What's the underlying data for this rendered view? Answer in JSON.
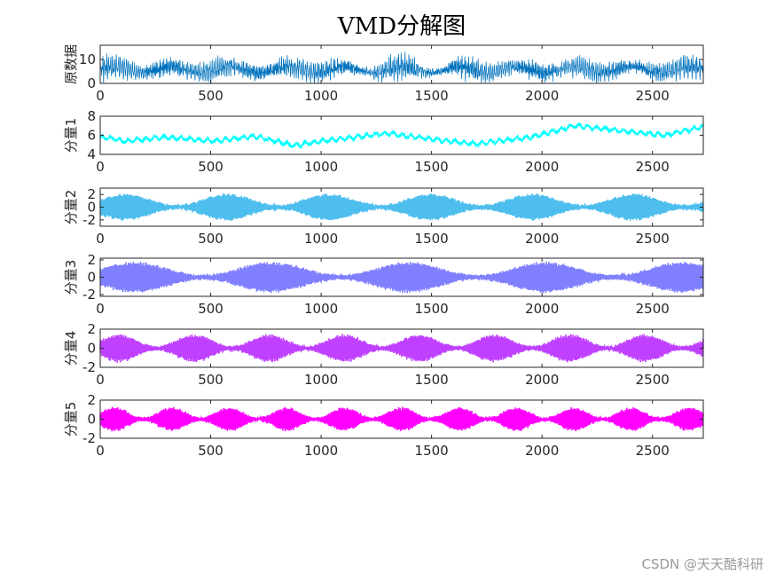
{
  "chart_data": {
    "type": "line",
    "title": "VMD分解图",
    "x_range": [
      0,
      2730
    ],
    "x_ticks": [
      0,
      500,
      1000,
      1500,
      2000,
      2500
    ],
    "panels": [
      {
        "name": "原数据",
        "ylabel": "原数据",
        "ylim": [
          0,
          16
        ],
        "y_ticks": [
          0,
          10
        ],
        "color": "#0072BD",
        "stroke": 0.7,
        "signal": {
          "base": 5.8,
          "components": [
            {
              "amp": 1.3,
              "period": 260,
              "phase": 0.0
            },
            {
              "amp": 3.0,
              "period": 9,
              "phase": 0.3,
              "mod_period": 420
            },
            {
              "amp": 2.2,
              "period": 6,
              "phase": 1.1,
              "mod_period": 330
            },
            {
              "amp": 1.8,
              "period": 4.3,
              "phase": 2.0,
              "mod_period": 280
            }
          ],
          "noise": 1.3
        }
      },
      {
        "name": "分量1",
        "ylabel": "分量1",
        "ylim": [
          4,
          8
        ],
        "y_ticks": [
          4,
          6,
          8
        ],
        "color": "#00FFFF",
        "stroke": 1.4,
        "signal": {
          "trend": [
            [
              0,
              5.8
            ],
            [
              120,
              5.4
            ],
            [
              300,
              5.8
            ],
            [
              520,
              5.4
            ],
            [
              700,
              5.9
            ],
            [
              880,
              4.9
            ],
            [
              1000,
              5.4
            ],
            [
              1300,
              6.2
            ],
            [
              1500,
              5.6
            ],
            [
              1700,
              5.1
            ],
            [
              1950,
              5.8
            ],
            [
              2150,
              7.0
            ],
            [
              2350,
              6.5
            ],
            [
              2550,
              6.0
            ],
            [
              2730,
              6.9
            ]
          ],
          "components": [
            {
              "amp": 0.18,
              "period": 40,
              "phase": 0.4
            }
          ],
          "noise": 0.15
        }
      },
      {
        "name": "分量2",
        "ylabel": "分量2",
        "ylim": [
          -3,
          3
        ],
        "y_ticks": [
          -2,
          0,
          2
        ],
        "color": "#4DBEEE",
        "stroke": 1.6,
        "signal": {
          "base": 0,
          "components": [
            {
              "amp": 2.0,
              "period": 7,
              "phase": 0,
              "mod_period": 460
            }
          ],
          "noise": 0.2
        }
      },
      {
        "name": "分量3",
        "ylabel": "分量3",
        "ylim": [
          -2.2,
          2.2
        ],
        "y_ticks": [
          -2,
          0,
          2
        ],
        "color": "#8080FF",
        "stroke": 1.6,
        "signal": {
          "base": 0,
          "components": [
            {
              "amp": 1.7,
              "period": 5.5,
              "phase": 0,
              "mod_period": 620
            }
          ],
          "noise": 0.15
        }
      },
      {
        "name": "分量4",
        "ylabel": "分量4",
        "ylim": [
          -2,
          2
        ],
        "y_ticks": [
          -2,
          0,
          2
        ],
        "color": "#BF40FF",
        "stroke": 1.6,
        "signal": {
          "base": 0,
          "components": [
            {
              "amp": 1.4,
              "period": 4.6,
              "phase": 0,
              "mod_period": 340
            }
          ],
          "noise": 0.12
        }
      },
      {
        "name": "分量5",
        "ylabel": "分量5",
        "ylim": [
          -2,
          2
        ],
        "y_ticks": [
          -2,
          0,
          2
        ],
        "color": "#FF00FF",
        "stroke": 1.6,
        "signal": {
          "base": 0,
          "components": [
            {
              "amp": 1.2,
              "period": 3.6,
              "phase": 0,
              "mod_period": 260
            }
          ],
          "noise": 0.12
        }
      }
    ]
  },
  "watermark": "CSDN @天天酷科研"
}
